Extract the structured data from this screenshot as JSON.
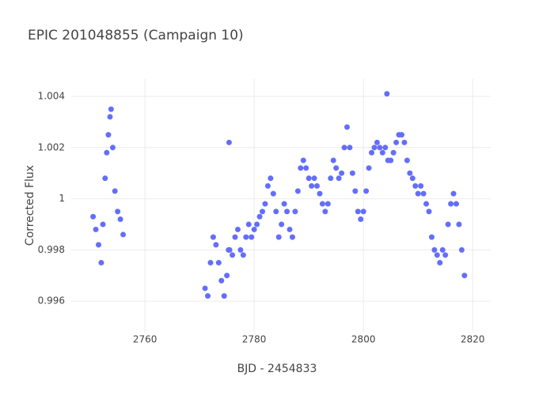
{
  "chart_data": {
    "type": "scatter",
    "title": "EPIC 201048855 (Campaign 10)",
    "x_label": "BJD - 2454833",
    "y_label": "Corrected Flux",
    "color": "#636efa",
    "grid": true,
    "xlim": [
      2746.5,
      2823.3
    ],
    "ylim": [
      0.9948,
      1.00468
    ],
    "xticks": [
      2760,
      2780,
      2800,
      2820
    ],
    "yticks": [
      0.996,
      0.998,
      1,
      1.002,
      1.004
    ],
    "x": [
      2750.5,
      2751,
      2751.5,
      2752,
      2752.3,
      2752.7,
      2753,
      2753.3,
      2753.6,
      2753.8,
      2754.1,
      2754.5,
      2755,
      2755.5,
      2756,
      2771,
      2771.5,
      2772,
      2772.5,
      2773,
      2773.5,
      2774,
      2774.5,
      2775,
      2775.3,
      2775.4,
      2775.5,
      2776,
      2776.5,
      2777,
      2777.5,
      2778,
      2778.5,
      2779,
      2779.5,
      2780,
      2780.5,
      2781,
      2781.5,
      2782,
      2782.5,
      2783,
      2783.5,
      2784,
      2784.5,
      2785,
      2785.5,
      2786,
      2786.5,
      2787,
      2787.5,
      2788,
      2788.5,
      2789,
      2789.5,
      2790,
      2790.5,
      2791,
      2791.5,
      2792,
      2792.5,
      2793,
      2793.5,
      2794,
      2794.5,
      2795,
      2795.5,
      2796,
      2796.5,
      2797,
      2797.5,
      2798,
      2798.5,
      2799,
      2799.5,
      2800,
      2800.5,
      2801,
      2801.5,
      2802,
      2802.5,
      2803,
      2803.5,
      2804,
      2804.3,
      2804.5,
      2805,
      2805.5,
      2806,
      2806.5,
      2807,
      2807.5,
      2808,
      2808.5,
      2809,
      2809.5,
      2810,
      2810.5,
      2811,
      2811.5,
      2812,
      2812.5,
      2813,
      2813.5,
      2814,
      2814.5,
      2815,
      2815.5,
      2816,
      2816.5,
      2817,
      2817.5,
      2818,
      2818.5
    ],
    "values": [
      0.9993,
      0.9988,
      0.9982,
      0.9975,
      0.999,
      1.0008,
      1.0018,
      1.0025,
      1.0032,
      1.0035,
      1.002,
      1.0003,
      0.9995,
      0.9992,
      0.9986,
      0.9965,
      0.9962,
      0.9975,
      0.9985,
      0.9982,
      0.9975,
      0.9968,
      0.9962,
      0.997,
      0.998,
      1.0022,
      0.998,
      0.9978,
      0.9985,
      0.9988,
      0.998,
      0.9978,
      0.9985,
      0.999,
      0.9985,
      0.9988,
      0.999,
      0.9993,
      0.9995,
      0.9998,
      1.0005,
      1.0008,
      1.0002,
      0.9995,
      0.9985,
      0.999,
      0.9998,
      0.9995,
      0.9988,
      0.9985,
      0.9995,
      1.0003,
      1.0012,
      1.0015,
      1.0012,
      1.0008,
      1.0005,
      1.0008,
      1.0005,
      1.0002,
      0.9998,
      0.9995,
      0.9998,
      1.0008,
      1.0015,
      1.0012,
      1.0008,
      1.001,
      1.002,
      1.0028,
      1.002,
      1.001,
      1.0003,
      0.9995,
      0.9992,
      0.9995,
      1.0003,
      1.0012,
      1.0018,
      1.002,
      1.0022,
      1.002,
      1.0018,
      1.002,
      1.0041,
      1.0015,
      1.0015,
      1.0018,
      1.0022,
      1.0025,
      1.0025,
      1.0022,
      1.0015,
      1.001,
      1.0008,
      1.0005,
      1.0002,
      1.0005,
      1.0002,
      0.9998,
      0.9995,
      0.9985,
      0.998,
      0.9978,
      0.9975,
      0.998,
      0.9978,
      0.999,
      0.9998,
      1.0002,
      0.9998,
      0.999,
      0.998,
      0.997
    ]
  }
}
